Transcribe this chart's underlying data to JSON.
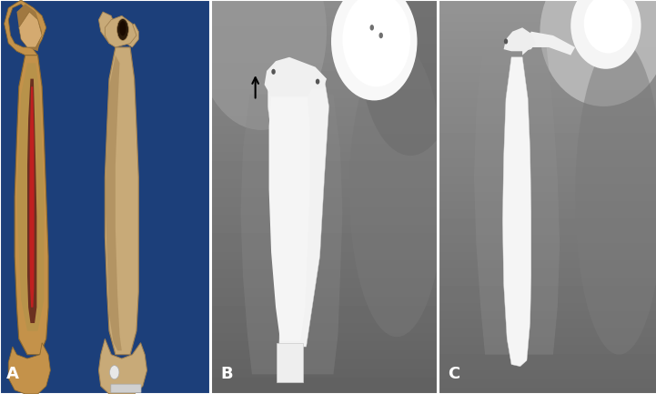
{
  "figure_width": 7.21,
  "figure_height": 4.33,
  "dpi": 100,
  "panel_label_color": "white",
  "panel_label_fontsize": 13,
  "panel_label_fontweight": "bold",
  "panel_A_label": "A",
  "panel_B_label": "B",
  "panel_C_label": "C",
  "panel_A_bg": "#1c3f7a",
  "panel_B_bg": "#7a7a7a",
  "panel_C_bg": "#808080",
  "border_color": "#ffffff",
  "wA": 0.32,
  "wB": 0.345,
  "wC": 0.335,
  "background_color": "#ffffff"
}
